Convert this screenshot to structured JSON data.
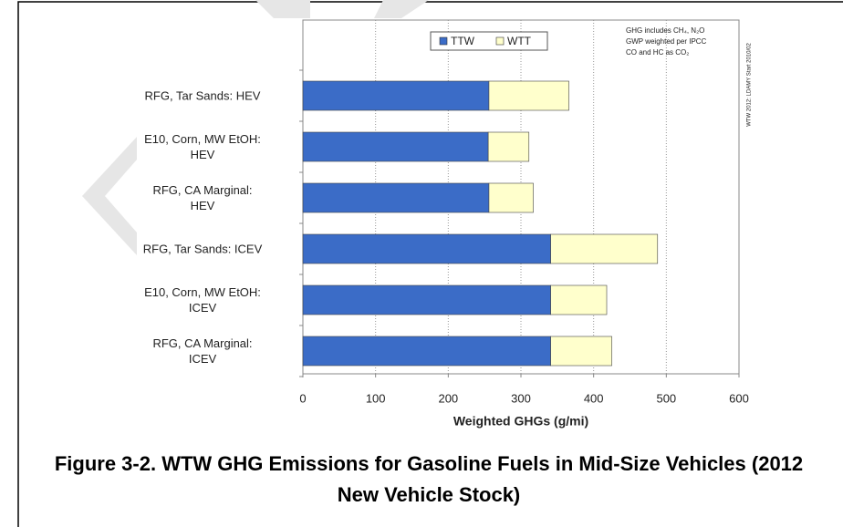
{
  "chart_data": {
    "type": "stacked_barh",
    "title": "Figure 3-2.  WTW GHG Emissions for Gasoline Fuels in Mid-Size Vehicles (2012 New Vehicle Stock)",
    "xlabel": "Weighted GHGs (g/mi)",
    "annotation": [
      "GHG includes CH₄, N₂O",
      "GWP weighted per IPCC",
      "CO and HC as CO₂"
    ],
    "side_note": "WTW 2012: LDAMY Start 2010/02",
    "categories": [
      "RFG, Tar Sands: HEV",
      "E10, Corn, MW EtOH:\nHEV",
      "RFG, CA Marginal:\nHEV",
      "RFG, Tar Sands: ICEV",
      "E10, Corn, MW EtOH:\nICEV",
      "RFG, CA Marginal:\nICEV"
    ],
    "series": [
      {
        "name": "TTW",
        "color": "#3b6cc7",
        "values": [
          256,
          255,
          256,
          341,
          341,
          341
        ]
      },
      {
        "name": "WTT",
        "color": "#ffffcc",
        "values": [
          110,
          56,
          61,
          147,
          77,
          84
        ]
      }
    ],
    "xlim": [
      0,
      600
    ],
    "xticks": [
      0,
      100,
      200,
      300,
      400,
      500,
      600
    ],
    "grid": true,
    "legend": "top"
  }
}
